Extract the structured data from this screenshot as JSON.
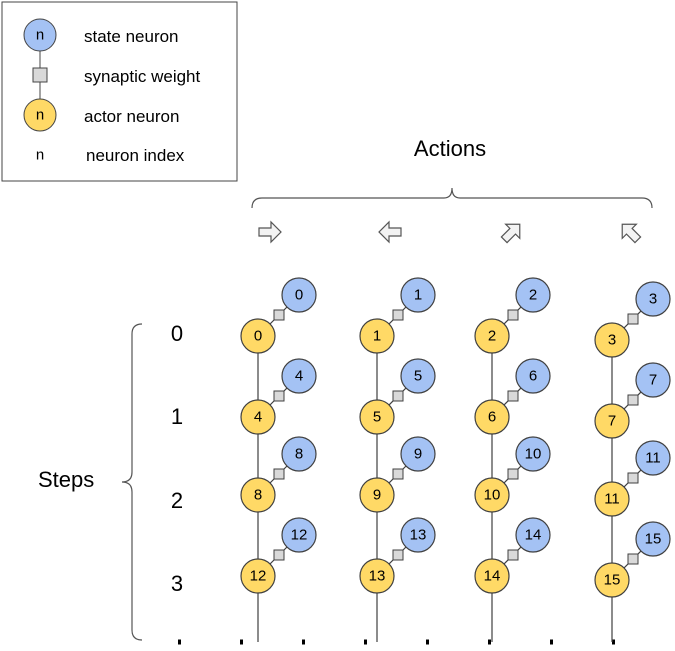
{
  "legend": {
    "items": [
      {
        "key": "state",
        "symbol": "n",
        "label": "state neuron"
      },
      {
        "key": "weight",
        "symbol": "",
        "label": "synaptic weight"
      },
      {
        "key": "actor",
        "symbol": "n",
        "label": "actor neuron"
      },
      {
        "key": "index",
        "symbol": "n",
        "label": "neuron index"
      }
    ]
  },
  "actions_label": "Actions",
  "steps_label": "Steps",
  "actions": [
    {
      "icon": "arrow-right-icon"
    },
    {
      "icon": "arrow-left-icon"
    },
    {
      "icon": "arrow-up-right-icon"
    },
    {
      "icon": "arrow-up-left-icon"
    }
  ],
  "steps": [
    "0",
    "1",
    "2",
    "3"
  ],
  "neurons": [
    [
      "0",
      "1",
      "2",
      "3"
    ],
    [
      "4",
      "5",
      "6",
      "7"
    ],
    [
      "8",
      "9",
      "10",
      "11"
    ],
    [
      "12",
      "13",
      "14",
      "15"
    ]
  ],
  "colors": {
    "state_fill": "#a4c2f4",
    "actor_fill": "#ffd966",
    "weight_fill": "#d9d9d9",
    "stroke": "#404040",
    "icon_fill": "#f3f3f3"
  }
}
